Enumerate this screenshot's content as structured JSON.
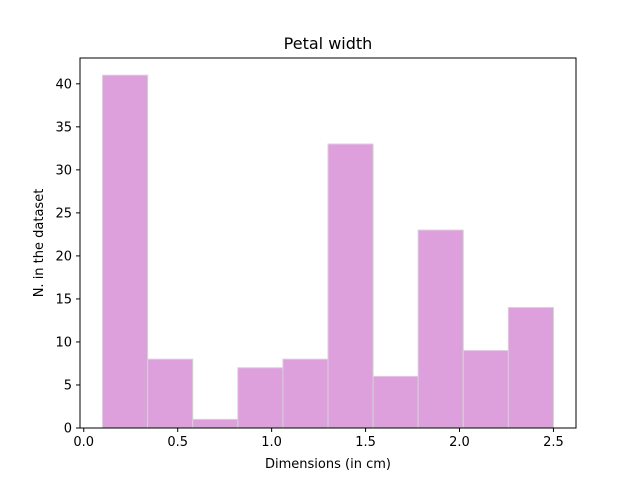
{
  "chart_data": {
    "type": "bar",
    "title": "Petal width",
    "xlabel": "Dimensions (in cm)",
    "ylabel": "N. in the dataset",
    "bins": [
      {
        "x0": 0.1,
        "x1": 0.34,
        "value": 41
      },
      {
        "x0": 0.34,
        "x1": 0.58,
        "value": 8
      },
      {
        "x0": 0.58,
        "x1": 0.82,
        "value": 1
      },
      {
        "x0": 0.82,
        "x1": 1.06,
        "value": 7
      },
      {
        "x0": 1.06,
        "x1": 1.3,
        "value": 8
      },
      {
        "x0": 1.3,
        "x1": 1.54,
        "value": 33
      },
      {
        "x0": 1.54,
        "x1": 1.78,
        "value": 6
      },
      {
        "x0": 1.78,
        "x1": 2.02,
        "value": 23
      },
      {
        "x0": 2.02,
        "x1": 2.26,
        "value": 9
      },
      {
        "x0": 2.26,
        "x1": 2.5,
        "value": 14
      }
    ],
    "xlim": [
      -0.02,
      2.62
    ],
    "ylim": [
      0,
      43
    ],
    "xticks": [
      0.0,
      0.5,
      1.0,
      1.5,
      2.0,
      2.5
    ],
    "xtick_labels": [
      "0.0",
      "0.5",
      "1.0",
      "1.5",
      "2.0",
      "2.5"
    ],
    "yticks": [
      0,
      5,
      10,
      15,
      20,
      25,
      30,
      35,
      40
    ],
    "ytick_labels": [
      "0",
      "5",
      "10",
      "15",
      "20",
      "25",
      "30",
      "35",
      "40"
    ],
    "bar_color": "#dda0dd",
    "bar_edge_color": "#d3d3d3",
    "grid": false,
    "legend": false
  }
}
